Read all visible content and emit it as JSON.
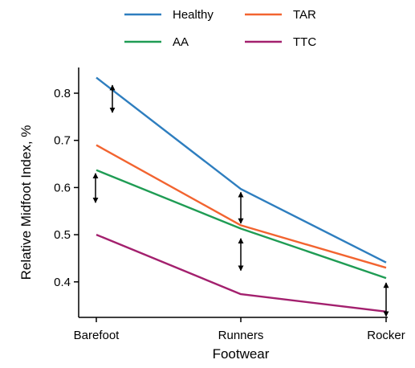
{
  "chart_data": {
    "type": "line",
    "categories": [
      "Barefoot",
      "Runners",
      "Rocker"
    ],
    "xlabel": "Footwear",
    "ylabel": "Relative Midfoot Index, %",
    "ylim": [
      0.33,
      0.84
    ],
    "yticks": [
      "0.4",
      "0.5",
      "0.6",
      "0.7",
      "0.8"
    ],
    "grid": false,
    "legend_position": "top-center",
    "series": [
      {
        "name": "Healthy",
        "color": "#2e7ebf",
        "values": [
          0.833,
          0.597,
          0.441
        ]
      },
      {
        "name": "TAR",
        "color": "#f26430",
        "values": [
          0.69,
          0.52,
          0.43
        ]
      },
      {
        "name": "AA",
        "color": "#1f9c54",
        "values": [
          0.637,
          0.513,
          0.408
        ]
      },
      {
        "name": "TTC",
        "color": "#a3206e",
        "values": [
          0.5,
          0.374,
          0.337
        ]
      }
    ],
    "annotations": [
      {
        "type": "double-arrow",
        "category": "Barefoot",
        "offset": "right",
        "y_from": 0.759,
        "y_to": 0.817
      },
      {
        "type": "double-arrow",
        "category": "Barefoot",
        "offset": "left",
        "y_from": 0.568,
        "y_to": 0.63
      },
      {
        "type": "double-arrow",
        "category": "Runners",
        "offset": "center",
        "y_from": 0.524,
        "y_to": 0.59
      },
      {
        "type": "double-arrow",
        "category": "Runners",
        "offset": "center",
        "y_from": 0.424,
        "y_to": 0.492
      },
      {
        "type": "double-arrow",
        "category": "Rocker",
        "offset": "center",
        "y_from": 0.327,
        "y_to": 0.398
      }
    ]
  }
}
